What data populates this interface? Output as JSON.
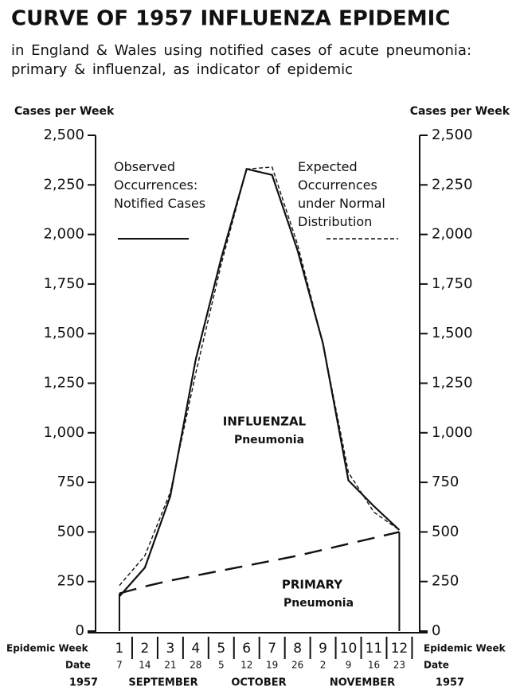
{
  "chart_data": {
    "type": "line",
    "title": "CURVE OF 1957 INFLUENZA EPIDEMIC",
    "subtitle": "in England & Wales using notified cases of acute pneumonia: primary & influenzal, as indicator of epidemic",
    "y_label": "Cases per Week",
    "y2_label": "Cases per Week",
    "x_label": "Epidemic Week",
    "date_label": "Date",
    "x": [
      1,
      2,
      3,
      4,
      5,
      6,
      7,
      8,
      9,
      10,
      11,
      12
    ],
    "dates": [
      "7",
      "14",
      "21",
      "28",
      "5",
      "12",
      "19",
      "26",
      "2",
      "9",
      "16",
      "23"
    ],
    "months": [
      "SEPTEMBER",
      "OCTOBER",
      "NOVEMBER"
    ],
    "year_labels": [
      "1957",
      "1957"
    ],
    "xlim": [
      0,
      12.8
    ],
    "ylim": [
      0,
      2500
    ],
    "yticks": [
      {
        "value": 2500,
        "label": "2,500"
      },
      {
        "value": 2250,
        "label": "2,250"
      },
      {
        "value": 2000,
        "label": "2,000"
      },
      {
        "value": 1750,
        "label": "1,750"
      },
      {
        "value": 1500,
        "label": "1,500"
      },
      {
        "value": 1250,
        "label": "1,250"
      },
      {
        "value": 1000,
        "label": "1,000"
      },
      750,
      500,
      250,
      0
    ],
    "series": [
      {
        "name": "Observed Occurrences: Notified Cases",
        "color": "#111111",
        "dash": "solid",
        "values": [
          175,
          320,
          680,
          1370,
          1880,
          2330,
          2300,
          1920,
          1450,
          760,
          630,
          510
        ]
      },
      {
        "name": "Expected Occurrences under Normal Distribution",
        "color": "#111111",
        "dash": "dashed",
        "values": [
          230,
          380,
          700,
          1300,
          1850,
          2330,
          2340,
          1950,
          1450,
          800,
          600,
          510
        ]
      },
      {
        "color": "#111111",
        "dash": "longdash",
        "values": [
          190,
          225,
          255,
          280,
          305,
          330,
          355,
          380,
          410,
          440,
          470,
          500
        ]
      }
    ],
    "annotations": [
      "INFLUENZAL",
      "Pneumonia",
      "PRIMARY",
      "Pneumonia"
    ]
  }
}
